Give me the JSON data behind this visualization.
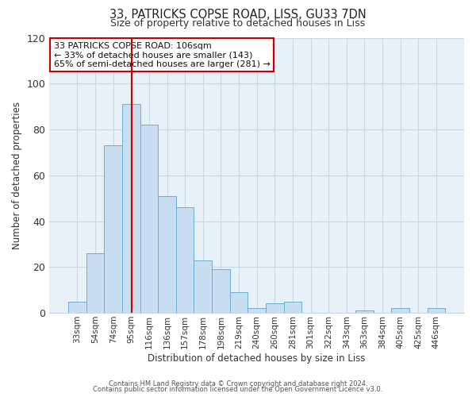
{
  "title": "33, PATRICKS COPSE ROAD, LISS, GU33 7DN",
  "subtitle": "Size of property relative to detached houses in Liss",
  "xlabel": "Distribution of detached houses by size in Liss",
  "ylabel": "Number of detached properties",
  "bar_labels": [
    "33sqm",
    "54sqm",
    "74sqm",
    "95sqm",
    "116sqm",
    "136sqm",
    "157sqm",
    "178sqm",
    "198sqm",
    "219sqm",
    "240sqm",
    "260sqm",
    "281sqm",
    "301sqm",
    "322sqm",
    "343sqm",
    "363sqm",
    "384sqm",
    "405sqm",
    "425sqm",
    "446sqm"
  ],
  "bar_values": [
    5,
    26,
    73,
    91,
    82,
    51,
    46,
    23,
    19,
    9,
    2,
    4,
    5,
    0,
    0,
    0,
    1,
    0,
    2,
    0,
    2
  ],
  "bar_color": "#c9ddf0",
  "bar_edge_color": "#6baed6",
  "plot_bg_color": "#e8f0f8",
  "ylim": [
    0,
    120
  ],
  "yticks": [
    0,
    20,
    40,
    60,
    80,
    100,
    120
  ],
  "vline_color": "#cc0000",
  "annotation_text": "33 PATRICKS COPSE ROAD: 106sqm\n← 33% of detached houses are smaller (143)\n65% of semi-detached houses are larger (281) →",
  "annotation_box_color": "#ffffff",
  "annotation_box_edge": "#cc0000",
  "footer_line1": "Contains HM Land Registry data © Crown copyright and database right 2024.",
  "footer_line2": "Contains public sector information licensed under the Open Government Licence v3.0.",
  "background_color": "#ffffff",
  "grid_color": "#c8d8e8"
}
